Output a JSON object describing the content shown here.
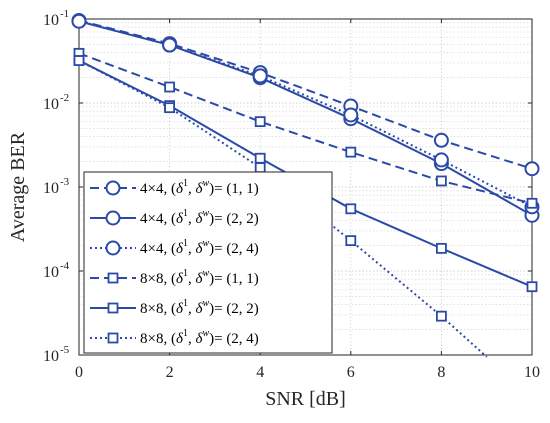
{
  "chart_data": {
    "type": "line",
    "xlabel": "SNR [dB]",
    "ylabel": "Average BER",
    "x_ticks": [
      "0",
      "2",
      "4",
      "6",
      "8",
      "10"
    ],
    "y_tick_mantissa": "10",
    "y_tick_exponents": [
      "-5",
      "-4",
      "-3",
      "-2",
      "-1"
    ],
    "xlim": [
      0,
      10
    ],
    "ylim": [
      1e-05,
      0.1
    ],
    "y_scale": "log",
    "grid": true,
    "legend_position": "lower-left",
    "line_color": "#2b4aa8",
    "grid_color": "#cfcfcf",
    "series": [
      {
        "name": "4×4, (δ¹, δʷ)= (1, 1)",
        "line_style": "dashed",
        "marker": "circle",
        "x": [
          0,
          2,
          4,
          6,
          8,
          10
        ],
        "y": [
          0.096,
          0.051,
          0.023,
          0.0092,
          0.0036,
          0.00165
        ]
      },
      {
        "name": "4×4, (δ¹, δʷ)= (2, 2)",
        "line_style": "solid",
        "marker": "circle",
        "x": [
          0,
          2,
          4,
          6,
          8,
          10
        ],
        "y": [
          0.094,
          0.049,
          0.02,
          0.0065,
          0.0019,
          0.00046
        ]
      },
      {
        "name": "4×4, (δ¹, δʷ)= (2, 4)",
        "line_style": "dotted",
        "marker": "circle",
        "x": [
          0,
          2,
          4,
          6,
          8,
          10
        ],
        "y": [
          0.094,
          0.049,
          0.021,
          0.0072,
          0.0021,
          0.00058
        ]
      },
      {
        "name": "8×8, (δ¹, δʷ)= (1, 1)",
        "line_style": "dashed",
        "marker": "square",
        "x": [
          0,
          2,
          4,
          6,
          8,
          10
        ],
        "y": [
          0.039,
          0.0155,
          0.006,
          0.0026,
          0.00118,
          0.00064
        ]
      },
      {
        "name": "8×8, (δ¹, δʷ)= (2, 2)",
        "line_style": "solid",
        "marker": "square",
        "x": [
          0,
          2,
          4,
          6,
          8,
          10
        ],
        "y": [
          0.032,
          0.0093,
          0.0022,
          0.00055,
          0.000186,
          6.5e-05
        ]
      },
      {
        "name": "8×8, (δ¹, δʷ)= (2, 4)",
        "line_style": "dotted",
        "marker": "square",
        "x": [
          0,
          2,
          4,
          6,
          8,
          9
        ],
        "y": [
          0.032,
          0.0088,
          0.0017,
          0.00023,
          2.9e-05,
          9.5e-06
        ],
        "marker_x": [
          0,
          2,
          4,
          6,
          8
        ],
        "marker_y": [
          0.032,
          0.0088,
          0.0017,
          0.00023,
          2.9e-05
        ]
      }
    ],
    "legend_entries": [
      {
        "size": "4×4,",
        "delta": "δ",
        "sup1": "1",
        "omega": "δ",
        "supw": "w",
        "value": "(1, 1)"
      },
      {
        "size": "4×4,",
        "delta": "δ",
        "sup1": "1",
        "omega": "δ",
        "supw": "w",
        "value": "(2, 2)"
      },
      {
        "size": "4×4,",
        "delta": "δ",
        "sup1": "1",
        "omega": "δ",
        "supw": "w",
        "value": "(2, 4)"
      },
      {
        "size": "8×8,",
        "delta": "δ",
        "sup1": "1",
        "omega": "δ",
        "supw": "w",
        "value": "(1, 1)"
      },
      {
        "size": "8×8,",
        "delta": "δ",
        "sup1": "1",
        "omega": "δ",
        "supw": "w",
        "value": "(2, 2)"
      },
      {
        "size": "8×8,",
        "delta": "δ",
        "sup1": "1",
        "omega": "δ",
        "supw": "w",
        "value": "(2, 4)"
      }
    ]
  }
}
